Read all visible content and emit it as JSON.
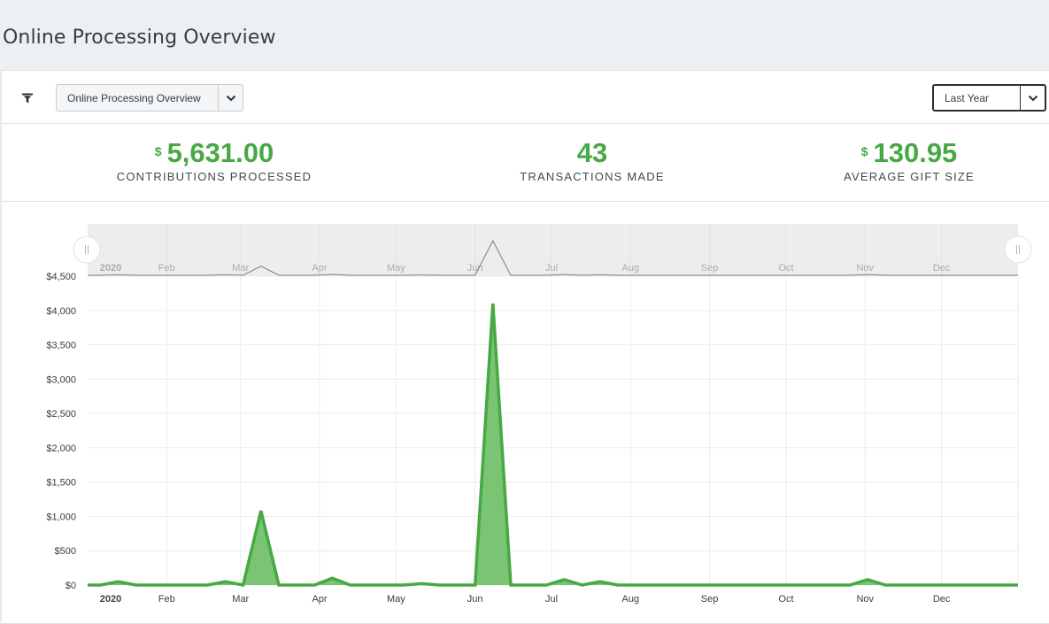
{
  "page": {
    "title": "Online Processing Overview"
  },
  "toolbar": {
    "filter_icon": "filter-icon",
    "report_select": {
      "value": "Online Processing Overview",
      "icon": "chevron-down-icon"
    },
    "range_select": {
      "value": "Last Year",
      "icon": "chevron-down-icon"
    }
  },
  "stats": [
    {
      "currency": "$",
      "value": "5,631.00",
      "label": "CONTRIBUTIONS PROCESSED"
    },
    {
      "currency": "",
      "value": "43",
      "label": "TRANSACTIONS MADE"
    },
    {
      "currency": "$",
      "value": "130.95",
      "label": "AVERAGE GIFT SIZE"
    }
  ],
  "colors": {
    "accent": "#47a943",
    "area_fill": "#7ac474",
    "text": "#333f48",
    "navigator_bg": "#ededed"
  },
  "chart_data": {
    "type": "area",
    "xlabel": "",
    "ylabel": "",
    "ylim": [
      0,
      4500
    ],
    "y_ticks": [
      0,
      500,
      1000,
      1500,
      2000,
      2500,
      3000,
      3500,
      4000,
      4500
    ],
    "y_tick_labels": [
      "$0",
      "$500",
      "$1,000",
      "$1,500",
      "$2,000",
      "$2,500",
      "$3,000",
      "$3,500",
      "$4,000",
      "$4,500"
    ],
    "x_tick_labels": [
      "2020",
      "Feb",
      "Mar",
      "Apr",
      "May",
      "Jun",
      "Jul",
      "Aug",
      "Sep",
      "Oct",
      "Nov",
      "Dec"
    ],
    "grid": true,
    "legend": "none",
    "navigator": true,
    "series": [
      {
        "points": [
          [
            "2020-01-01",
            0
          ],
          [
            "2020-01-06",
            0
          ],
          [
            "2020-01-13",
            50
          ],
          [
            "2020-01-20",
            0
          ],
          [
            "2020-01-27",
            0
          ],
          [
            "2020-02-03",
            0
          ],
          [
            "2020-02-10",
            0
          ],
          [
            "2020-02-17",
            0
          ],
          [
            "2020-02-24",
            50
          ],
          [
            "2020-03-02",
            0
          ],
          [
            "2020-03-09",
            1080
          ],
          [
            "2020-03-16",
            0
          ],
          [
            "2020-03-23",
            0
          ],
          [
            "2020-03-30",
            0
          ],
          [
            "2020-04-06",
            100
          ],
          [
            "2020-04-13",
            0
          ],
          [
            "2020-04-20",
            0
          ],
          [
            "2020-04-27",
            0
          ],
          [
            "2020-05-04",
            0
          ],
          [
            "2020-05-11",
            20
          ],
          [
            "2020-05-18",
            0
          ],
          [
            "2020-05-25",
            0
          ],
          [
            "2020-06-01",
            0
          ],
          [
            "2020-06-08",
            4100
          ],
          [
            "2020-06-15",
            0
          ],
          [
            "2020-06-22",
            0
          ],
          [
            "2020-06-29",
            0
          ],
          [
            "2020-07-06",
            80
          ],
          [
            "2020-07-13",
            0
          ],
          [
            "2020-07-20",
            50
          ],
          [
            "2020-07-27",
            0
          ],
          [
            "2020-08-03",
            0
          ],
          [
            "2020-08-10",
            0
          ],
          [
            "2020-08-17",
            0
          ],
          [
            "2020-08-24",
            0
          ],
          [
            "2020-08-31",
            0
          ],
          [
            "2020-09-07",
            0
          ],
          [
            "2020-09-14",
            0
          ],
          [
            "2020-09-21",
            0
          ],
          [
            "2020-09-28",
            0
          ],
          [
            "2020-10-05",
            0
          ],
          [
            "2020-10-12",
            0
          ],
          [
            "2020-10-19",
            0
          ],
          [
            "2020-10-26",
            0
          ],
          [
            "2020-11-02",
            80
          ],
          [
            "2020-11-09",
            0
          ],
          [
            "2020-11-16",
            0
          ],
          [
            "2020-11-23",
            0
          ],
          [
            "2020-11-30",
            0
          ],
          [
            "2020-12-07",
            0
          ],
          [
            "2020-12-14",
            0
          ],
          [
            "2020-12-21",
            0
          ],
          [
            "2020-12-31",
            0
          ]
        ]
      }
    ]
  }
}
